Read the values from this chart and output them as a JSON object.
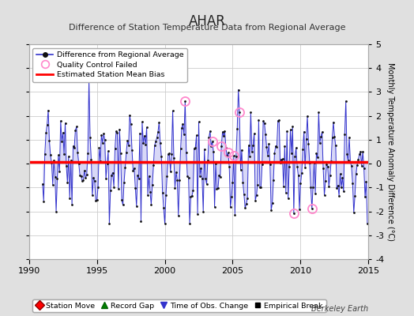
{
  "title": "AHAR",
  "subtitle": "Difference of Station Temperature Data from Regional Average",
  "ylabel_right": "Monthly Temperature Anomaly Difference (°C)",
  "xlim": [
    1990,
    2015
  ],
  "ylim": [
    -4,
    5
  ],
  "yticks": [
    -4,
    -3,
    -2,
    -1,
    0,
    1,
    2,
    3,
    4,
    5
  ],
  "xticks": [
    1990,
    1995,
    2000,
    2005,
    2010,
    2015
  ],
  "bias_line_y": 0.08,
  "bias_line_color": "#ff0000",
  "line_color": "#3333cc",
  "line_color_fill": "#aaaaee",
  "dot_color": "#111111",
  "qc_color": "#ff88cc",
  "background_color": "#e0e0e0",
  "plot_bg_color": "#ffffff",
  "grid_color": "#cccccc",
  "watermark": "Berkeley Earth",
  "seed": 17,
  "n_years": 24,
  "start_year": 1991,
  "amplitude_seasonal": 1.2,
  "noise_scale": 0.55,
  "qc_times": [
    2001.5,
    2003.5,
    2004.2,
    2004.7,
    2005.1,
    2005.5,
    2009.5,
    2010.8
  ],
  "title_fontsize": 12,
  "subtitle_fontsize": 8,
  "tick_fontsize": 8,
  "ylabel_fontsize": 7
}
